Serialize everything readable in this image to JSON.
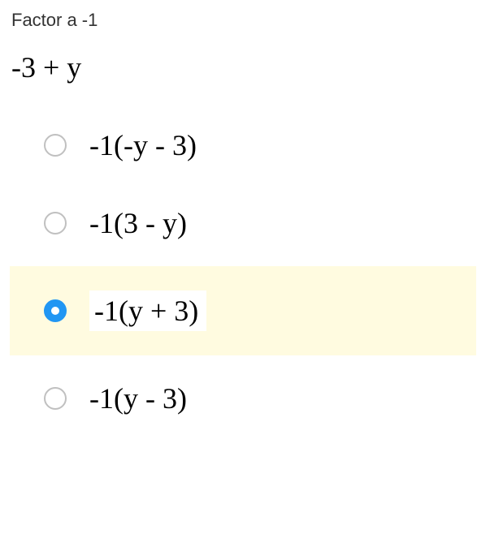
{
  "prompt": "Factor a -1",
  "expression": "-3 + y",
  "options": [
    {
      "label": "-1(-y - 3)",
      "selected": false
    },
    {
      "label": "-1(3 - y)",
      "selected": false
    },
    {
      "label": "-1(y + 3)",
      "selected": true
    },
    {
      "label": "-1(y - 3)",
      "selected": false
    }
  ],
  "colors": {
    "highlight_bg": "#fffbe0",
    "radio_unselected_border": "#c0c0c0",
    "radio_selected": "#2196f3",
    "text": "#000000",
    "prompt_text": "#333333",
    "page_bg": "#ffffff"
  },
  "typography": {
    "prompt_fontsize": 22,
    "expression_fontsize": 36,
    "option_fontsize": 36,
    "math_font": "Times New Roman"
  }
}
